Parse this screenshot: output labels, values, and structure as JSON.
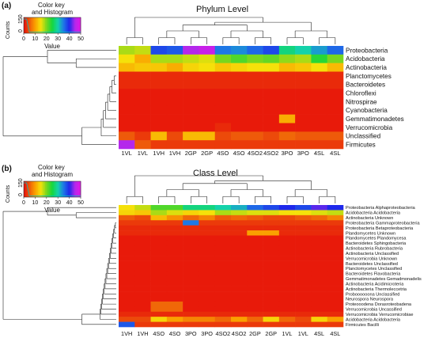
{
  "panels": [
    {
      "label": "(a)",
      "title": "Phylum Level",
      "key_title": "Color key\nand Histogram",
      "key_ylabel": "Counts",
      "key_yticks": [
        "0",
        "150"
      ],
      "key_xticks": [
        "0",
        "10",
        "20",
        "30",
        "40",
        "50"
      ],
      "key_xlabel": "Value"
    },
    {
      "label": "(b)",
      "title": "Class Level",
      "key_title": "Color key\nand Histogram",
      "key_ylabel": "Counts",
      "key_yticks": [
        "0",
        "150"
      ],
      "key_xticks": [
        "0",
        "10",
        "20",
        "30",
        "40",
        "50"
      ],
      "key_xlabel": "Value"
    }
  ],
  "chart_data": [
    {
      "type": "heatmap",
      "title": "Phylum Level",
      "color_range": [
        0,
        50
      ],
      "columns": [
        "1VL",
        "1VL",
        "1VH",
        "1VH",
        "2GP",
        "2GP",
        "4SO",
        "4SO",
        "4SO2",
        "4SO2",
        "3PO",
        "3PO",
        "4SL",
        "4SL"
      ],
      "rows": [
        "Proteobacteria",
        "Acidobacteria",
        "Actinobacteria",
        "Planctomycetes",
        "Bacteroidetes",
        "Chloroflexi",
        "Nitrospirae",
        "Cyanobacteria",
        "Gemmatimonadetes",
        "Verrucomicrobia",
        "Unclassified",
        "Firmicutes"
      ],
      "values": [
        [
          18,
          17,
          38,
          37,
          45,
          47,
          35,
          34,
          36,
          38,
          28,
          30,
          33,
          36
        ],
        [
          15,
          11,
          18,
          18,
          17,
          16,
          20,
          22,
          20,
          21,
          19,
          18,
          24,
          20
        ],
        [
          12,
          13,
          13,
          11,
          14,
          15,
          13,
          14,
          15,
          15,
          12,
          13,
          15,
          12
        ],
        [
          2,
          2,
          2,
          2,
          2,
          2,
          2,
          2,
          2,
          2,
          2,
          2,
          2,
          2
        ],
        [
          2,
          2,
          2,
          2,
          2,
          2,
          2,
          2,
          2,
          2,
          2,
          2,
          2,
          2
        ],
        [
          1,
          1,
          1,
          1,
          1,
          1,
          1,
          1,
          1,
          1,
          1,
          1,
          1,
          1
        ],
        [
          1,
          1,
          1,
          1,
          1,
          1,
          1,
          1,
          1,
          1,
          1,
          1,
          1,
          1
        ],
        [
          1,
          1,
          1,
          1,
          1,
          1,
          1,
          1,
          1,
          1,
          1,
          1,
          1,
          1
        ],
        [
          1,
          1,
          1,
          1,
          1,
          1,
          1,
          1,
          1,
          1,
          11,
          1,
          1,
          1
        ],
        [
          1,
          1,
          1,
          1,
          1,
          1,
          2,
          1,
          1,
          1,
          1,
          1,
          1,
          1
        ],
        [
          5,
          3,
          12,
          4,
          12,
          12,
          4,
          5,
          5,
          4,
          6,
          5,
          5,
          5
        ],
        [
          45,
          5,
          3,
          3,
          3,
          3,
          3,
          3,
          3,
          3,
          3,
          3,
          3,
          3
        ]
      ]
    },
    {
      "type": "heatmap",
      "title": "Class Level",
      "color_range": [
        0,
        50
      ],
      "columns": [
        "1VH",
        "1VH",
        "4SO",
        "4SO",
        "3PO",
        "3PO",
        "4SO2",
        "4SO2",
        "2GP",
        "2GP",
        "1VL",
        "1VL",
        "4SL",
        "4SL"
      ],
      "rows": [
        "Proteobacteria Alphaproteobacteria",
        "Acidobacteria Acidobacteria",
        "Actinobacteria Unknown",
        "Proteobacteria Gammaproteobacteria",
        "Proteobacteria Betaproteobacteria",
        "Plandomycetes Unknown",
        "Plandomycetes Plandomycesa",
        "Bacteroidetes Sphingobacteria",
        "Actinobacteria Rubrobacteria",
        "Actinobacteria Unclassified",
        "Verrucomicrobia Unknown",
        "Bacteroidetes Unclassified",
        "Planctomycetes Unclassified",
        "Bacteroidetes Flavobacteria",
        "Gemmatimonadetes Gemadmonadelis",
        "Actinobacteria Acidimicroteria",
        "Actinobacteria Thermoleccetria",
        "Proboooooona Unclassified",
        "Neurospora Neurospora",
        "Proteooodena Dorasroteobadena",
        "Verrucomicrobia Uncassified",
        "Verrucomicrobia Verrucomicrobiae",
        "Acidobacteria Acidobacteria",
        "Firmicutes Bacilli"
      ],
      "values": [
        [
          15,
          17,
          22,
          22,
          28,
          28,
          30,
          32,
          36,
          38,
          40,
          38,
          42,
          40
        ],
        [
          14,
          13,
          18,
          16,
          14,
          15,
          18,
          17,
          16,
          16,
          15,
          15,
          16,
          17
        ],
        [
          5,
          4,
          12,
          9,
          6,
          8,
          5,
          6,
          5,
          4,
          4,
          5,
          6,
          8
        ],
        [
          3,
          3,
          3,
          3,
          35,
          3,
          3,
          3,
          3,
          3,
          3,
          3,
          3,
          3
        ],
        [
          2,
          2,
          2,
          2,
          2,
          2,
          2,
          2,
          2,
          2,
          2,
          2,
          2,
          2
        ],
        [
          2,
          2,
          2,
          2,
          2,
          2,
          2,
          2,
          10,
          10,
          2,
          2,
          2,
          2
        ],
        [
          1,
          1,
          1,
          1,
          1,
          1,
          1,
          1,
          1,
          1,
          1,
          1,
          1,
          1
        ],
        [
          1,
          1,
          1,
          1,
          1,
          1,
          1,
          1,
          1,
          1,
          1,
          1,
          1,
          1
        ],
        [
          1,
          1,
          1,
          1,
          1,
          1,
          1,
          1,
          1,
          1,
          1,
          1,
          1,
          1
        ],
        [
          1,
          1,
          1,
          1,
          1,
          1,
          1,
          1,
          1,
          1,
          1,
          1,
          1,
          1
        ],
        [
          1,
          1,
          1,
          1,
          1,
          1,
          1,
          1,
          1,
          1,
          1,
          1,
          1,
          1
        ],
        [
          1,
          1,
          1,
          1,
          1,
          1,
          1,
          1,
          1,
          1,
          1,
          1,
          1,
          1
        ],
        [
          1,
          1,
          1,
          1,
          1,
          1,
          1,
          1,
          1,
          1,
          1,
          1,
          1,
          1
        ],
        [
          1,
          1,
          1,
          1,
          1,
          1,
          1,
          1,
          1,
          1,
          1,
          1,
          1,
          1
        ],
        [
          1,
          1,
          1,
          1,
          1,
          1,
          1,
          1,
          1,
          1,
          1,
          1,
          1,
          1
        ],
        [
          1,
          1,
          1,
          1,
          1,
          1,
          1,
          1,
          1,
          1,
          1,
          1,
          1,
          1
        ],
        [
          1,
          1,
          1,
          1,
          1,
          1,
          1,
          1,
          1,
          1,
          1,
          1,
          1,
          1
        ],
        [
          1,
          1,
          1,
          1,
          1,
          1,
          1,
          1,
          1,
          1,
          1,
          1,
          1,
          1
        ],
        [
          1,
          1,
          1,
          1,
          1,
          1,
          1,
          1,
          1,
          1,
          1,
          1,
          1,
          1
        ],
        [
          1,
          1,
          6,
          6,
          1,
          1,
          1,
          1,
          1,
          1,
          1,
          1,
          1,
          1
        ],
        [
          1,
          1,
          6,
          6,
          1,
          1,
          1,
          1,
          1,
          1,
          1,
          1,
          1,
          1
        ],
        [
          2,
          2,
          2,
          2,
          2,
          2,
          2,
          2,
          2,
          2,
          2,
          2,
          2,
          2
        ],
        [
          4,
          4,
          14,
          10,
          8,
          8,
          6,
          10,
          6,
          14,
          6,
          4,
          14,
          10
        ],
        [
          37,
          3,
          3,
          3,
          3,
          3,
          3,
          3,
          3,
          3,
          3,
          3,
          3,
          3
        ]
      ]
    }
  ]
}
